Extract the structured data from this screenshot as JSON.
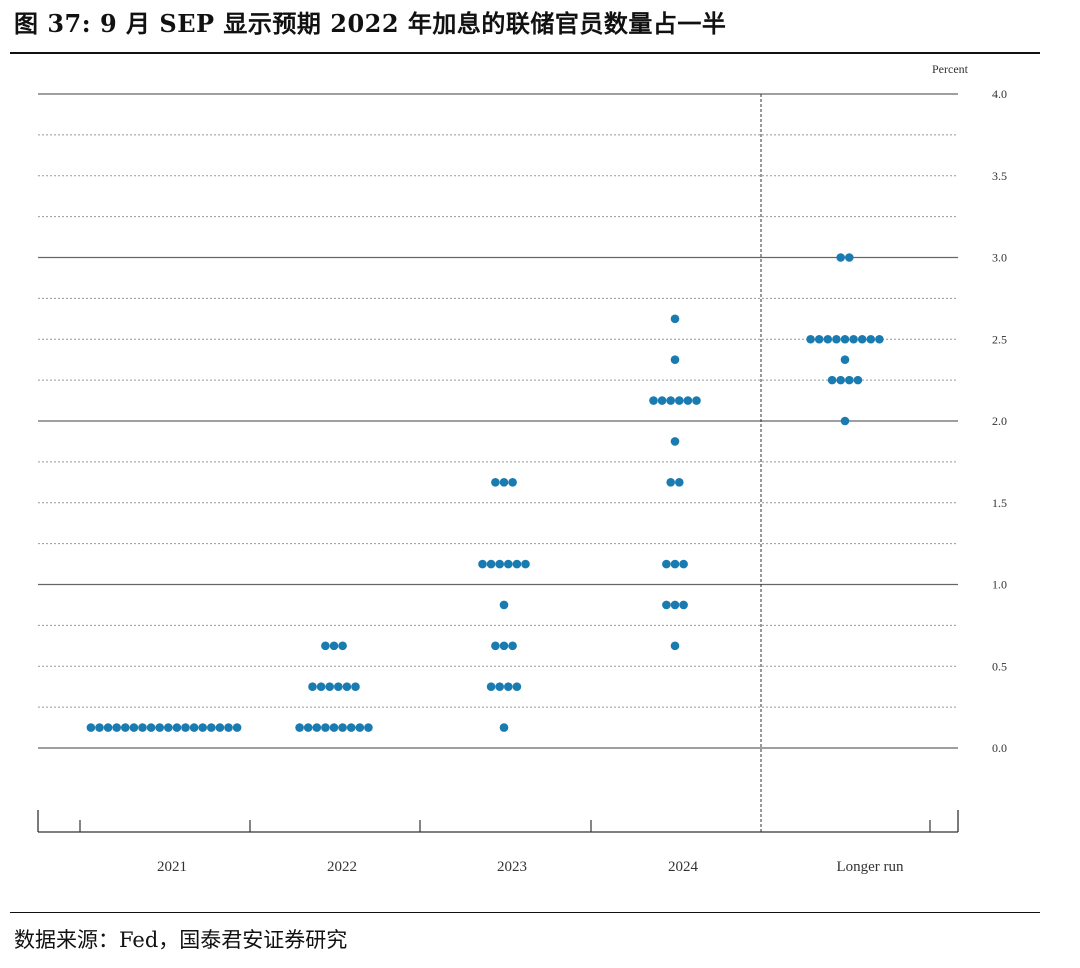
{
  "header": {
    "figure_title": "图 37: 9 月 SEP 显示预期 2022 年加息的联储官员数量占一半"
  },
  "footer": {
    "source": "数据来源：Fed，国泰君安证券研究"
  },
  "colors": {
    "dot": "#1a7bb0",
    "solid_grid": "#666666",
    "dotted_grid": "#999999",
    "axis": "#333333"
  },
  "chart_data": {
    "type": "scatter",
    "subtype": "dot-plot",
    "title": "",
    "xlabel": "",
    "ylabel": "Percent",
    "ylim": [
      0,
      4.0
    ],
    "yticks": [
      "0.0",
      "0.5",
      "1.0",
      "1.5",
      "2.0",
      "2.5",
      "3.0",
      "3.5",
      "4.0"
    ],
    "categories": [
      "2021",
      "2022",
      "2023",
      "2024",
      "Longer run"
    ],
    "grid": "solid lines at whole and half percent, dotted lines at quarter points",
    "series": [
      {
        "values": [
          {
            "category": "2021",
            "points": [
              {
                "rate": 0.125,
                "count": 18
              }
            ]
          },
          {
            "category": "2022",
            "points": [
              {
                "rate": 0.125,
                "count": 9
              },
              {
                "rate": 0.375,
                "count": 6
              },
              {
                "rate": 0.625,
                "count": 3
              }
            ]
          },
          {
            "category": "2023",
            "points": [
              {
                "rate": 0.125,
                "count": 1
              },
              {
                "rate": 0.375,
                "count": 4
              },
              {
                "rate": 0.625,
                "count": 3
              },
              {
                "rate": 0.875,
                "count": 1
              },
              {
                "rate": 1.125,
                "count": 6
              },
              {
                "rate": 1.625,
                "count": 3
              }
            ]
          },
          {
            "category": "2024",
            "points": [
              {
                "rate": 0.625,
                "count": 1
              },
              {
                "rate": 0.875,
                "count": 3
              },
              {
                "rate": 1.125,
                "count": 3
              },
              {
                "rate": 1.625,
                "count": 2
              },
              {
                "rate": 1.875,
                "count": 1
              },
              {
                "rate": 2.125,
                "count": 6
              },
              {
                "rate": 2.375,
                "count": 1
              },
              {
                "rate": 2.625,
                "count": 1
              }
            ]
          },
          {
            "category": "Longer run",
            "points": [
              {
                "rate": 2.0,
                "count": 1
              },
              {
                "rate": 2.25,
                "count": 4
              },
              {
                "rate": 2.375,
                "count": 1
              },
              {
                "rate": 2.5,
                "count": 9
              },
              {
                "rate": 3.0,
                "count": 2
              }
            ]
          }
        ]
      }
    ]
  }
}
